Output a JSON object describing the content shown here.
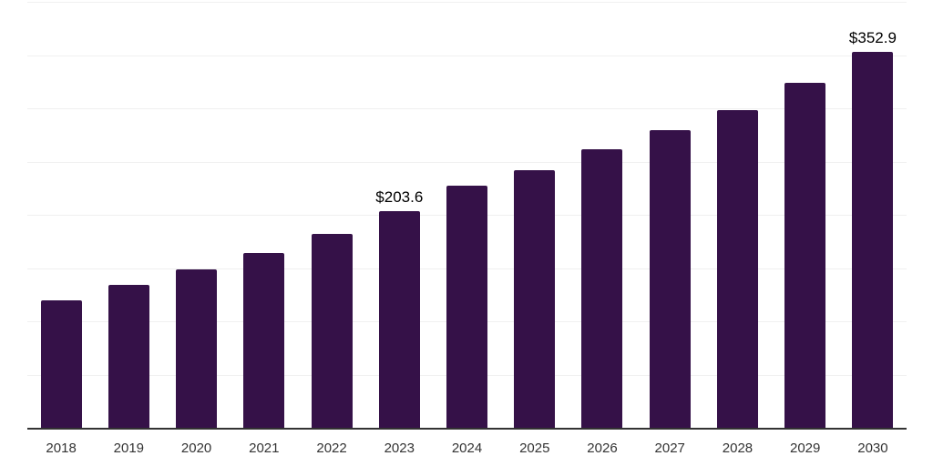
{
  "chart_data": {
    "type": "bar",
    "title": "",
    "xlabel": "",
    "ylabel": "",
    "categories": [
      "2018",
      "2019",
      "2020",
      "2021",
      "2022",
      "2023",
      "2024",
      "2025",
      "2026",
      "2027",
      "2028",
      "2029",
      "2030"
    ],
    "values": [
      119.3,
      133.8,
      149.1,
      164.4,
      182.3,
      203.6,
      227.5,
      242.0,
      261.6,
      279.5,
      298.2,
      323.8,
      352.9
    ],
    "data_labels": {
      "2023": "$203.6",
      "2030": "$352.9"
    },
    "ylim": [
      0,
      400
    ],
    "grid_divisions": 8,
    "grid_on": true,
    "legend": "none",
    "y_tick_labels_visible": false,
    "colors": {
      "bar": "#351148",
      "axis_line": "#333333",
      "gridline": "#f0f0f0",
      "data_label": "#000000",
      "tick_label": "#333333",
      "background": "#ffffff"
    }
  }
}
